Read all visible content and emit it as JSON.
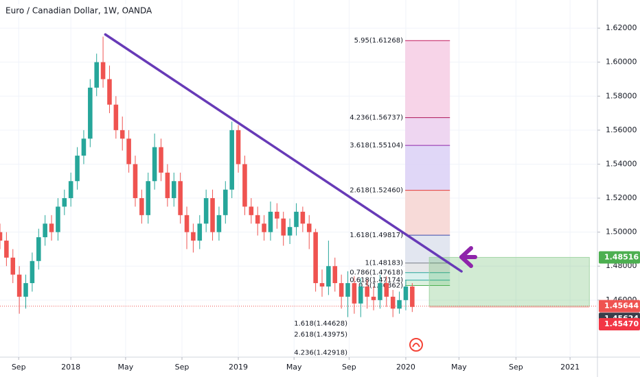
{
  "chart_data": {
    "type": "candlestick",
    "title": "Euro / Canadian Dollar, 1W, OANDA",
    "up_color": "#26a69a",
    "down_color": "#ef5350",
    "x": [
      -22,
      -20,
      -18,
      -16,
      -14,
      -12,
      -10,
      -8,
      -6,
      -4,
      -2,
      0,
      2,
      4,
      6,
      8,
      10,
      12,
      14,
      16,
      18,
      20,
      22,
      24,
      26,
      28,
      30,
      32,
      34,
      36,
      38,
      40,
      42,
      44,
      46,
      48,
      50,
      52,
      54,
      56,
      58,
      60,
      62,
      64,
      66,
      68,
      70,
      72,
      74,
      76,
      78,
      80,
      82,
      84,
      86,
      88,
      90,
      92,
      94,
      96,
      98,
      100,
      102,
      104,
      106
    ],
    "open": [
      1.5,
      1.495,
      1.485,
      1.475,
      1.462,
      1.47,
      1.483,
      1.497,
      1.505,
      1.5,
      1.515,
      1.52,
      1.53,
      1.545,
      1.555,
      1.585,
      1.6,
      1.59,
      1.575,
      1.56,
      1.555,
      1.54,
      1.52,
      1.51,
      1.53,
      1.55,
      1.535,
      1.52,
      1.53,
      1.51,
      1.5,
      1.495,
      1.505,
      1.52,
      1.5,
      1.51,
      1.525,
      1.56,
      1.54,
      1.515,
      1.51,
      1.505,
      1.5,
      1.512,
      1.508,
      1.498,
      1.503,
      1.512,
      1.505,
      1.5,
      1.47,
      1.468,
      1.48,
      1.47,
      1.462,
      1.47,
      1.458,
      1.468,
      1.462,
      1.46,
      1.47,
      1.462,
      1.455,
      1.46,
      1.468
    ],
    "high": [
      1.505,
      1.5,
      1.49,
      1.48,
      1.475,
      1.488,
      1.502,
      1.51,
      1.51,
      1.52,
      1.525,
      1.535,
      1.55,
      1.56,
      1.59,
      1.605,
      1.615,
      1.598,
      1.58,
      1.568,
      1.56,
      1.545,
      1.525,
      1.535,
      1.558,
      1.555,
      1.54,
      1.535,
      1.535,
      1.515,
      1.505,
      1.51,
      1.525,
      1.525,
      1.515,
      1.53,
      1.565,
      1.563,
      1.545,
      1.52,
      1.515,
      1.51,
      1.518,
      1.517,
      1.512,
      1.508,
      1.517,
      1.515,
      1.51,
      1.502,
      1.478,
      1.495,
      1.485,
      1.475,
      1.477,
      1.474,
      1.473,
      1.472,
      1.468,
      1.475,
      1.474,
      1.466,
      1.465,
      1.472,
      1.47
    ],
    "low": [
      1.49,
      1.48,
      1.47,
      1.452,
      1.455,
      1.465,
      1.478,
      1.492,
      1.495,
      1.495,
      1.51,
      1.515,
      1.525,
      1.54,
      1.55,
      1.58,
      1.585,
      1.57,
      1.555,
      1.548,
      1.535,
      1.515,
      1.505,
      1.505,
      1.525,
      1.53,
      1.515,
      1.515,
      1.505,
      1.49,
      1.488,
      1.49,
      1.5,
      1.495,
      1.495,
      1.505,
      1.52,
      1.535,
      1.51,
      1.505,
      1.498,
      1.495,
      1.495,
      1.502,
      1.492,
      1.493,
      1.498,
      1.5,
      1.49,
      1.465,
      1.462,
      1.463,
      1.465,
      1.455,
      1.45,
      1.452,
      1.45,
      1.455,
      1.454,
      1.455,
      1.456,
      1.45,
      1.452,
      1.454,
      1.453
    ],
    "close": [
      1.495,
      1.485,
      1.475,
      1.462,
      1.47,
      1.483,
      1.497,
      1.505,
      1.5,
      1.515,
      1.52,
      1.53,
      1.545,
      1.555,
      1.585,
      1.6,
      1.59,
      1.575,
      1.56,
      1.555,
      1.54,
      1.52,
      1.51,
      1.53,
      1.55,
      1.535,
      1.52,
      1.53,
      1.51,
      1.5,
      1.495,
      1.505,
      1.52,
      1.5,
      1.51,
      1.525,
      1.56,
      1.54,
      1.515,
      1.51,
      1.505,
      1.5,
      1.512,
      1.508,
      1.498,
      1.503,
      1.512,
      1.505,
      1.5,
      1.47,
      1.468,
      1.48,
      1.47,
      1.462,
      1.47,
      1.458,
      1.468,
      1.462,
      1.46,
      1.47,
      1.462,
      1.455,
      1.46,
      1.468,
      1.456
    ],
    "xlim": [
      -22,
      163.5
    ],
    "xticks": [
      {
        "value": -16.2,
        "label": "Sep"
      },
      {
        "value": 0,
        "label": "2018"
      },
      {
        "value": 17,
        "label": "May"
      },
      {
        "value": 34.5,
        "label": "Sep"
      },
      {
        "value": 52,
        "label": "2019"
      },
      {
        "value": 69.3,
        "label": "May"
      },
      {
        "value": 86.4,
        "label": "Sep"
      },
      {
        "value": 104,
        "label": "2020"
      },
      {
        "value": 120.5,
        "label": "May"
      },
      {
        "value": 138.2,
        "label": "Sep"
      },
      {
        "value": 155,
        "label": "2021"
      }
    ],
    "ylim": [
      1.42646,
      1.63657
    ],
    "yticks": [
      {
        "value": 1.62,
        "label": "1.62000"
      },
      {
        "value": 1.6,
        "label": "1.60000"
      },
      {
        "value": 1.58,
        "label": "1.58000"
      },
      {
        "value": 1.56,
        "label": "1.56000"
      },
      {
        "value": 1.54,
        "label": "1.54000"
      },
      {
        "value": 1.52,
        "label": "1.52000"
      },
      {
        "value": 1.5,
        "label": "1.50000"
      },
      {
        "value": 1.48,
        "label": "1.48000"
      },
      {
        "value": 1.46,
        "label": "1.46000"
      }
    ],
    "grid": true,
    "fib_x": [
      103.8,
      117.7
    ],
    "fib_levels": [
      {
        "label": "5.95(1.61268)",
        "price": 1.61268,
        "color": "#c2185b",
        "fill": "#f6cfe6"
      },
      {
        "label": "4.236(1.56737)",
        "price": 1.56737,
        "color": "#ad1457",
        "fill": "#ecd2f0"
      },
      {
        "label": "3.618(1.55104)",
        "price": 1.55104,
        "color": "#8e24aa",
        "fill": "#ddd3f6"
      },
      {
        "label": "2.618(1.52460)",
        "price": 1.5246,
        "color": "#e53935",
        "fill": "#f6d6d4"
      },
      {
        "label": "1.618(1.49817)",
        "price": 1.49817,
        "color": "#3949ab",
        "fill": "#dfe3ee"
      },
      {
        "label": "1(1.48183)",
        "price": 1.48183,
        "color": "#787b86",
        "fill": "#e3e4e7"
      },
      {
        "label": "0.786(1.47618)",
        "price": 1.47618,
        "color": "#26a69a",
        "fill": "#d6efec"
      },
      {
        "label": "0.618(1.47174)",
        "price": 1.47174,
        "color": "#26a69a",
        "fill": "#d9f0dc"
      },
      {
        "label": "0.5(1.46862)",
        "price": 1.46862,
        "color": "#4caf50",
        "fill": "#e3f3e3"
      }
    ],
    "lower_fib_levels": [
      {
        "label": "1.618(1.44628)",
        "price": 1.44628,
        "color": "#3949ab"
      },
      {
        "label": "2.618(1.43975)",
        "price": 1.43975,
        "color": "#e53935"
      },
      {
        "label": "4.236(1.42918)",
        "price": 1.42918,
        "color": "#ad1457"
      }
    ],
    "trend_line": {
      "x": [
        10.7,
        121.3
      ],
      "y": [
        1.6163,
        1.4769
      ],
      "color": "#673ab7"
    },
    "position": {
      "x": [
        111.3,
        161
      ],
      "target": 1.48516,
      "entry": 1.45644,
      "stop": 1.4555
    },
    "price_labels": [
      {
        "value": 1.48516,
        "label": "1.48516",
        "color": "#4caf50"
      },
      {
        "value": 1.45644,
        "label": "1.45644",
        "color": "#ef5350"
      },
      {
        "value": 1.45624,
        "label": "1.45624",
        "color": "#3a3e4a"
      },
      {
        "value": 1.4547,
        "label": "1.45470",
        "color": "#f23645"
      }
    ]
  }
}
